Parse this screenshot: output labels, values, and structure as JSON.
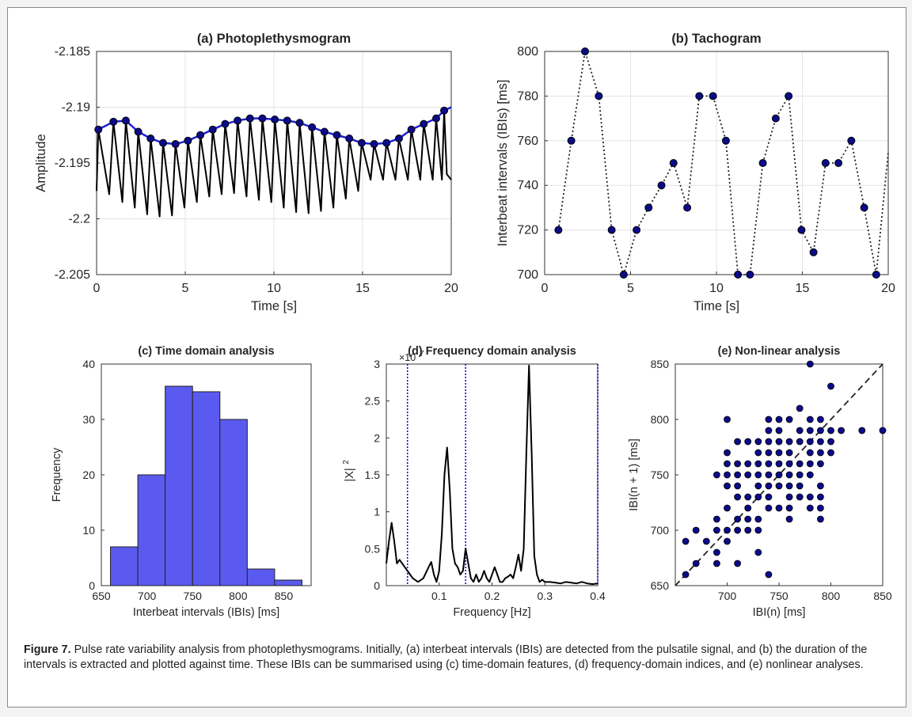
{
  "caption": {
    "label": "Figure 7.",
    "text": "Pulse rate variability analysis from photoplethysmograms. Initially, (a) interbeat intervals (IBIs) are detected from the pulsatile signal, and (b) the duration of the intervals is extracted and plotted against time. These IBIs can be summarised using (c) time-domain features, (d) frequency-domain indices, and (e) nonlinear analyses."
  },
  "colors": {
    "accent": "#0b0b8a",
    "envelope": "#1f1fd6",
    "bar_fill": "#5a5af0",
    "dotted_line": "#0000cc",
    "signal": "#000000"
  },
  "chart_data": [
    {
      "id": "a",
      "type": "line",
      "title": "(a) Photoplethysmogram",
      "xlabel": "Time [s]",
      "ylabel": "Amplitude",
      "xlim": [
        0,
        20
      ],
      "ylim": [
        -2.205,
        -2.185
      ],
      "xticks": [
        "0",
        "5",
        "10",
        "15",
        "20"
      ],
      "yticks": [
        "-2.205",
        "-2.2",
        "-2.195",
        "-2.19",
        "-2.185"
      ],
      "grid": true,
      "signal": {
        "description_values": "pulsatile trace",
        "beat_period_s": 0.75,
        "trough_values": [
          -2.1978,
          -2.1985,
          -2.199,
          -2.1996,
          -2.1998,
          -2.1997,
          -2.199,
          -2.1985,
          -2.198,
          -2.1978,
          -2.1977,
          -2.198,
          -2.1983,
          -2.1985,
          -2.199,
          -2.1994,
          -2.1995,
          -2.1993,
          -2.199,
          -2.1982,
          -2.1975,
          -2.1965
        ]
      },
      "series": [
        {
          "name": "peaks",
          "x": [
            0.1,
            0.95,
            1.65,
            2.35,
            3.05,
            3.75,
            4.45,
            5.15,
            5.85,
            6.55,
            7.25,
            7.95,
            8.65,
            9.35,
            10.05,
            10.75,
            11.45,
            12.15,
            12.85,
            13.55,
            14.25,
            14.95,
            15.65,
            16.35,
            17.05,
            17.75,
            18.45,
            19.15,
            19.6,
            20.0
          ],
          "y": [
            -2.192,
            -2.1913,
            -2.1912,
            -2.1922,
            -2.1928,
            -2.1932,
            -2.1933,
            -2.193,
            -2.1925,
            -2.192,
            -2.1915,
            -2.1912,
            -2.191,
            -2.191,
            -2.1911,
            -2.1912,
            -2.1914,
            -2.1918,
            -2.1922,
            -2.1925,
            -2.1928,
            -2.1932,
            -2.1933,
            -2.1932,
            -2.1928,
            -2.192,
            -2.1915,
            -2.191,
            -2.1903,
            -2.19
          ]
        }
      ]
    },
    {
      "id": "b",
      "type": "line",
      "title": "(b) Tachogram",
      "xlabel": "Time [s]",
      "ylabel": "Interbeat intervals (IBIs) [ms]",
      "xlim": [
        0,
        20
      ],
      "ylim": [
        700,
        800
      ],
      "xticks": [
        "0",
        "5",
        "10",
        "15",
        "20"
      ],
      "yticks": [
        "700",
        "720",
        "740",
        "760",
        "780",
        "800"
      ],
      "grid": true,
      "series": [
        {
          "name": "IBIs",
          "x": [
            0.8,
            1.55,
            2.35,
            3.15,
            3.9,
            4.6,
            5.35,
            6.05,
            6.8,
            7.5,
            8.3,
            9.0,
            9.8,
            10.55,
            11.25,
            11.95,
            12.7,
            13.45,
            14.2,
            14.95,
            15.65,
            16.35,
            17.1,
            17.85,
            18.6,
            19.3,
            20.0
          ],
          "y": [
            720,
            760,
            800,
            780,
            720,
            700,
            720,
            730,
            740,
            750,
            730,
            780,
            780,
            760,
            700,
            700,
            750,
            770,
            780,
            720,
            710,
            750,
            750,
            760,
            730,
            700,
            755
          ]
        }
      ]
    },
    {
      "id": "c",
      "type": "bar",
      "title": "(c) Time domain analysis",
      "xlabel": "Interbeat intervals (IBIs) [ms]",
      "ylabel": "Frequency",
      "xlim": [
        650,
        880
      ],
      "ylim": [
        0,
        40
      ],
      "xticks": [
        "650",
        "700",
        "750",
        "800",
        "850"
      ],
      "yticks": [
        "0",
        "10",
        "20",
        "30",
        "40"
      ],
      "grid": false,
      "bin_edges": [
        660,
        690,
        720,
        750,
        780,
        810,
        840,
        870
      ],
      "values": [
        7,
        20,
        36,
        35,
        30,
        3,
        1
      ]
    },
    {
      "id": "d",
      "type": "line",
      "title": "(d) Frequency domain analysis",
      "xlabel": "Frequency [Hz]",
      "ylabel": "|X|",
      "ylabel_superscript": "2",
      "exponent_label": "×10",
      "exponent_power": "7",
      "xlim": [
        0,
        0.4
      ],
      "ylim": [
        0,
        3
      ],
      "xticks": [
        "0.1",
        "0.2",
        "0.3",
        "0.4"
      ],
      "yticks": [
        "0",
        "0.5",
        "1",
        "1.5",
        "2",
        "2.5",
        "3"
      ],
      "grid": false,
      "band_boundaries_hz": [
        0.04,
        0.15,
        0.4
      ],
      "series": [
        {
          "name": "spectrum",
          "x": [
            0.0,
            0.005,
            0.01,
            0.015,
            0.02,
            0.025,
            0.03,
            0.035,
            0.04,
            0.045,
            0.05,
            0.06,
            0.07,
            0.08,
            0.085,
            0.09,
            0.095,
            0.1,
            0.105,
            0.11,
            0.115,
            0.12,
            0.125,
            0.13,
            0.135,
            0.14,
            0.145,
            0.15,
            0.155,
            0.16,
            0.165,
            0.17,
            0.175,
            0.18,
            0.185,
            0.19,
            0.195,
            0.2,
            0.205,
            0.21,
            0.215,
            0.22,
            0.225,
            0.23,
            0.235,
            0.24,
            0.245,
            0.25,
            0.255,
            0.26,
            0.265,
            0.27,
            0.275,
            0.28,
            0.285,
            0.29,
            0.295,
            0.3,
            0.31,
            0.32,
            0.33,
            0.34,
            0.35,
            0.36,
            0.37,
            0.38,
            0.39,
            0.4
          ],
          "y": [
            0.3,
            0.6,
            0.85,
            0.6,
            0.3,
            0.35,
            0.3,
            0.25,
            0.2,
            0.15,
            0.1,
            0.05,
            0.1,
            0.25,
            0.32,
            0.15,
            0.05,
            0.2,
            0.7,
            1.5,
            1.87,
            1.3,
            0.5,
            0.3,
            0.25,
            0.15,
            0.2,
            0.5,
            0.3,
            0.1,
            0.05,
            0.15,
            0.05,
            0.1,
            0.2,
            0.1,
            0.05,
            0.15,
            0.25,
            0.15,
            0.05,
            0.05,
            0.1,
            0.12,
            0.15,
            0.1,
            0.25,
            0.42,
            0.2,
            0.5,
            1.8,
            2.98,
            1.8,
            0.4,
            0.15,
            0.05,
            0.08,
            0.05,
            0.05,
            0.04,
            0.03,
            0.05,
            0.04,
            0.03,
            0.05,
            0.03,
            0.02,
            0.03
          ]
        }
      ]
    },
    {
      "id": "e",
      "type": "scatter",
      "title": "(e) Non-linear analysis",
      "xlabel": "IBI(n) [ms]",
      "ylabel": "IBI(n + 1) [ms]",
      "xlim": [
        650,
        850
      ],
      "ylim": [
        650,
        850
      ],
      "xticks": [
        "700",
        "750",
        "800",
        "850"
      ],
      "yticks": [
        "650",
        "700",
        "750",
        "800",
        "850"
      ],
      "grid": false,
      "identity_line": true,
      "points": [
        [
          660,
          660
        ],
        [
          660,
          690
        ],
        [
          670,
          670
        ],
        [
          670,
          700
        ],
        [
          680,
          690
        ],
        [
          690,
          670
        ],
        [
          690,
          680
        ],
        [
          690,
          700
        ],
        [
          690,
          710
        ],
        [
          690,
          750
        ],
        [
          700,
          690
        ],
        [
          700,
          700
        ],
        [
          700,
          720
        ],
        [
          700,
          740
        ],
        [
          700,
          750
        ],
        [
          700,
          760
        ],
        [
          700,
          770
        ],
        [
          700,
          800
        ],
        [
          710,
          670
        ],
        [
          710,
          700
        ],
        [
          710,
          710
        ],
        [
          710,
          730
        ],
        [
          710,
          740
        ],
        [
          710,
          750
        ],
        [
          710,
          760
        ],
        [
          710,
          780
        ],
        [
          720,
          700
        ],
        [
          720,
          710
        ],
        [
          720,
          720
        ],
        [
          720,
          730
        ],
        [
          720,
          750
        ],
        [
          720,
          760
        ],
        [
          720,
          780
        ],
        [
          730,
          680
        ],
        [
          730,
          700
        ],
        [
          730,
          710
        ],
        [
          730,
          730
        ],
        [
          730,
          740
        ],
        [
          730,
          750
        ],
        [
          730,
          760
        ],
        [
          730,
          770
        ],
        [
          730,
          780
        ],
        [
          740,
          660
        ],
        [
          740,
          720
        ],
        [
          740,
          730
        ],
        [
          740,
          740
        ],
        [
          740,
          750
        ],
        [
          740,
          760
        ],
        [
          740,
          770
        ],
        [
          740,
          780
        ],
        [
          740,
          790
        ],
        [
          740,
          800
        ],
        [
          750,
          720
        ],
        [
          750,
          740
        ],
        [
          750,
          750
        ],
        [
          750,
          760
        ],
        [
          750,
          770
        ],
        [
          750,
          780
        ],
        [
          750,
          790
        ],
        [
          750,
          800
        ],
        [
          760,
          710
        ],
        [
          760,
          720
        ],
        [
          760,
          730
        ],
        [
          760,
          740
        ],
        [
          760,
          750
        ],
        [
          760,
          760
        ],
        [
          760,
          770
        ],
        [
          760,
          780
        ],
        [
          760,
          800
        ],
        [
          770,
          730
        ],
        [
          770,
          740
        ],
        [
          770,
          750
        ],
        [
          770,
          760
        ],
        [
          770,
          780
        ],
        [
          770,
          790
        ],
        [
          770,
          810
        ],
        [
          780,
          720
        ],
        [
          780,
          730
        ],
        [
          780,
          750
        ],
        [
          780,
          760
        ],
        [
          780,
          770
        ],
        [
          780,
          780
        ],
        [
          780,
          790
        ],
        [
          780,
          800
        ],
        [
          780,
          850
        ],
        [
          790,
          710
        ],
        [
          790,
          720
        ],
        [
          790,
          730
        ],
        [
          790,
          740
        ],
        [
          790,
          760
        ],
        [
          790,
          770
        ],
        [
          790,
          780
        ],
        [
          790,
          790
        ],
        [
          790,
          800
        ],
        [
          800,
          770
        ],
        [
          800,
          780
        ],
        [
          800,
          790
        ],
        [
          800,
          830
        ],
        [
          810,
          790
        ],
        [
          830,
          790
        ],
        [
          850,
          790
        ]
      ]
    }
  ]
}
